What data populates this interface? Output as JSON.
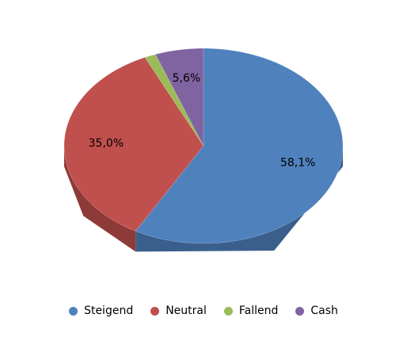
{
  "chart_data": {
    "type": "pie",
    "categories": [
      "Steigend",
      "Neutral",
      "Fallend",
      "Cash"
    ],
    "values": [
      58.1,
      35.0,
      1.3,
      5.6
    ],
    "value_labels": [
      "58,1%",
      "35,0%",
      null,
      "5,6%"
    ],
    "colors": [
      "#4f81bd",
      "#c0504d",
      "#9bbb59",
      "#8064a2"
    ],
    "side_colors": [
      "#3a5f8c",
      "#8e3a38",
      "#738c42",
      "#5e4a78"
    ],
    "legend": "bottom"
  }
}
